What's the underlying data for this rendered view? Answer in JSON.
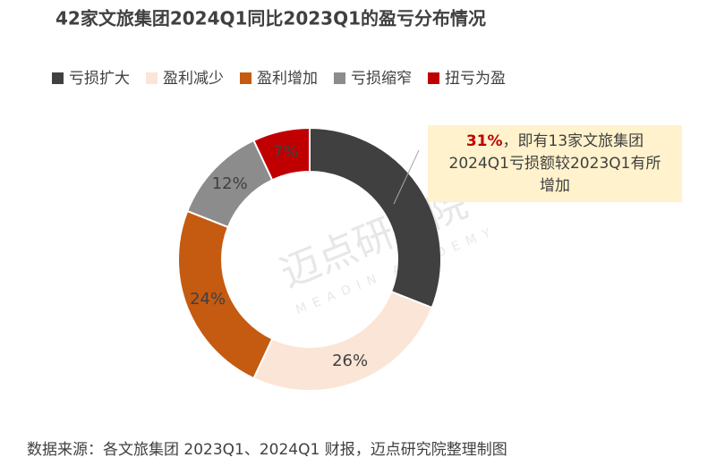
{
  "chart_data": {
    "type": "donut",
    "title": "42家文旅集团2024Q1同比2023Q1的盈亏分布情况",
    "categories": [
      "亏损扩大",
      "盈利减少",
      "盈利增加",
      "亏损缩窄",
      "扭亏为盈"
    ],
    "values": [
      31,
      26,
      24,
      12,
      7
    ],
    "value_labels": [
      "31%",
      "26%",
      "24%",
      "12%",
      "7%"
    ],
    "colors": [
      "#404040",
      "#fbe5d6",
      "#c55a11",
      "#8c8c8c",
      "#c00000"
    ],
    "annotation": [
      "，即有13家文旅集团",
      "2024Q1亏损额较2023Q1有所",
      "增加"
    ],
    "watermark": [
      "迈点研究院",
      "MEADIN ACADEMY"
    ],
    "source": "数据来源：各文旅集团 2023Q1、2024Q1 财报，迈点研究院整理制图"
  }
}
